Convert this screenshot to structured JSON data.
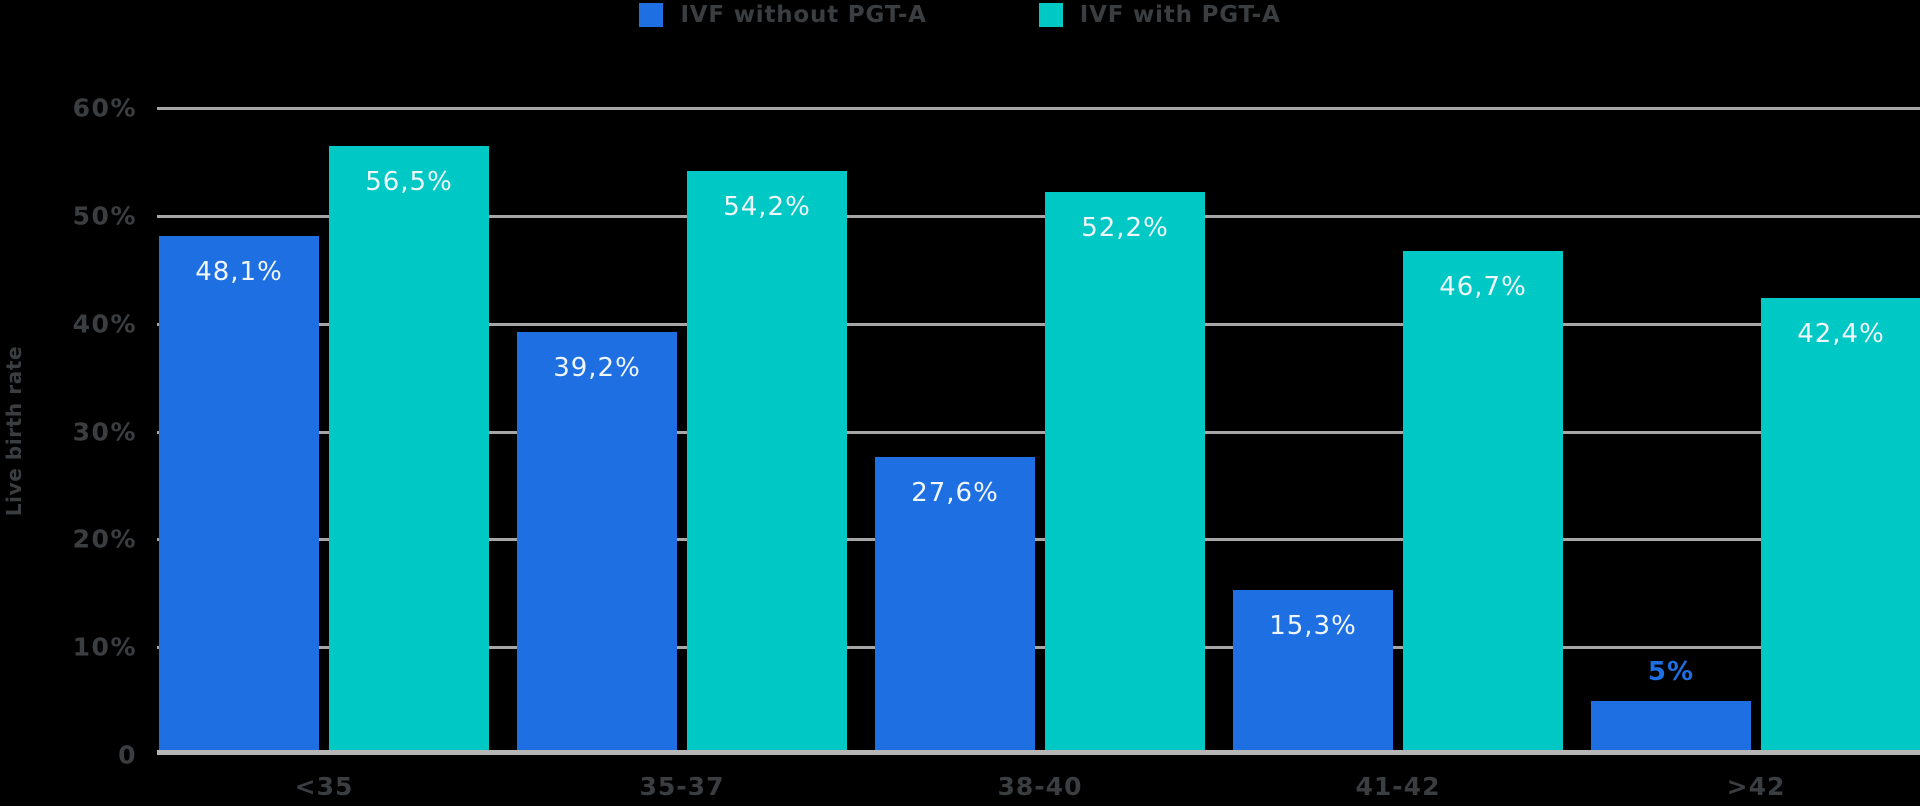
{
  "legend": {
    "items": [
      {
        "label": "IVF without PGT-A",
        "color": "#1d6fe2"
      },
      {
        "label": "IVF with PGT-A",
        "color": "#00c8c4"
      }
    ]
  },
  "y_axis": {
    "title": "Live birth rate"
  },
  "chart_data": {
    "type": "bar",
    "title": "",
    "xlabel": "",
    "ylabel": "Live birth rate",
    "categories": [
      "<35",
      "35-37",
      "38-40",
      "41-42",
      ">42"
    ],
    "series": [
      {
        "name": "IVF without PGT-A",
        "color": "#1d6fe2",
        "values": [
          48.1,
          39.2,
          27.6,
          15.3,
          5
        ],
        "labels": [
          "48,1%",
          "39,2%",
          "27,6%",
          "15,3%",
          "5%"
        ]
      },
      {
        "name": "IVF with PGT-A",
        "color": "#00c8c4",
        "values": [
          56.5,
          54.2,
          52.2,
          46.7,
          42.4
        ],
        "labels": [
          "56,5%",
          "54,2%",
          "52,2%",
          "46,7%",
          "42,4%"
        ]
      }
    ],
    "ylim": [
      0,
      60
    ],
    "y_tick_labels": [
      "60%",
      "50%",
      "40%",
      "30%",
      "20%",
      "10%",
      "0"
    ],
    "grid": true,
    "legend_position": "top-center",
    "value_label_outside_threshold": 8
  },
  "colors": {
    "background": "#000000",
    "bar_blue": "#1d6fe2",
    "bar_teal": "#00c8c4",
    "gridline": "#a6a6a6",
    "baseline": "#b6b6b6",
    "axis_text": "#3b3e41",
    "value_label": "#f0f6fa"
  }
}
